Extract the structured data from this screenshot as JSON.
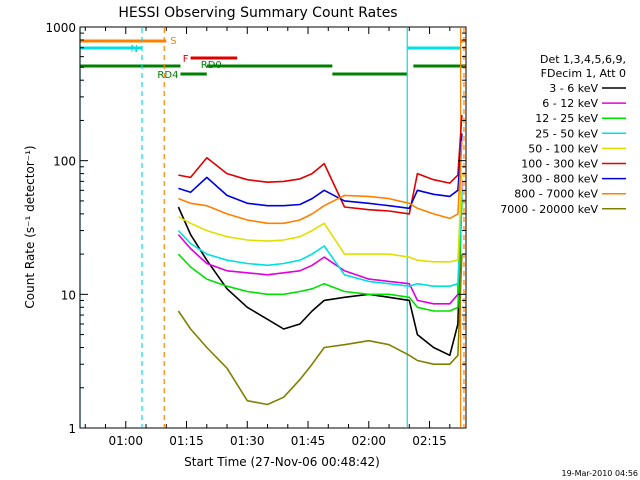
{
  "chart_data": {
    "type": "line",
    "title": "HESSI Observing Summary Count Rates",
    "xlabel": "Start Time (27-Nov-06 00:48:42)",
    "ylabel": "Count Rate (s⁻¹ detector⁻¹)",
    "y_scale": "log",
    "ylim": [
      1,
      1000
    ],
    "xlim": [
      "00:48:42",
      "02:24:00"
    ],
    "x_ticks": [
      "01:00",
      "01:15",
      "01:30",
      "01:45",
      "02:00",
      "02:15"
    ],
    "y_ticks": [
      "1",
      "10",
      "100",
      "1000"
    ],
    "legend_header": [
      "Det 1,3,4,5,6,9,",
      "FDecim 1, Att 0"
    ],
    "legend_position": "right",
    "timestamp": "19-Mar-2010 04:56",
    "series": [
      {
        "name": "3 - 6 keV",
        "color": "#000000",
        "x": [
          "01:13",
          "01:16",
          "01:20",
          "01:25",
          "01:30",
          "01:35",
          "01:39",
          "01:43",
          "01:46",
          "01:49",
          "01:54",
          "02:00",
          "02:05",
          "02:10",
          "02:12",
          "02:16",
          "02:20",
          "02:22",
          "02:23"
        ],
        "values": [
          45,
          28,
          18,
          11,
          8,
          6.5,
          5.5,
          6,
          7.5,
          9,
          9.5,
          10,
          9.5,
          9,
          5,
          4,
          3.5,
          6,
          60
        ]
      },
      {
        "name": "6 - 12 keV",
        "color": "#e000e0",
        "x": [
          "01:13",
          "01:16",
          "01:20",
          "01:25",
          "01:30",
          "01:35",
          "01:39",
          "01:43",
          "01:46",
          "01:49",
          "01:54",
          "02:00",
          "02:05",
          "02:10",
          "02:12",
          "02:16",
          "02:20",
          "02:22",
          "02:23"
        ],
        "values": [
          28,
          22,
          17,
          15,
          14.5,
          14,
          14.5,
          15,
          16.5,
          19,
          15,
          13,
          12.5,
          12,
          9,
          8.5,
          8.5,
          10,
          70
        ]
      },
      {
        "name": "12 - 25 keV",
        "color": "#00e000",
        "x": [
          "01:13",
          "01:16",
          "01:20",
          "01:25",
          "01:30",
          "01:35",
          "01:39",
          "01:43",
          "01:46",
          "01:49",
          "01:54",
          "02:00",
          "02:05",
          "02:10",
          "02:12",
          "02:16",
          "02:20",
          "02:22",
          "02:23"
        ],
        "values": [
          20,
          16,
          13,
          11.5,
          10.5,
          10,
          10,
          10.5,
          11,
          12,
          10.5,
          10,
          10,
          9.5,
          8,
          7.5,
          7.5,
          8,
          50
        ]
      },
      {
        "name": "25 - 50 keV",
        "color": "#00e0e0",
        "x": [
          "01:13",
          "01:16",
          "01:20",
          "01:25",
          "01:30",
          "01:35",
          "01:39",
          "01:43",
          "01:46",
          "01:49",
          "01:54",
          "02:00",
          "02:05",
          "02:10",
          "02:12",
          "02:16",
          "02:20",
          "02:22",
          "02:23"
        ],
        "values": [
          30,
          24,
          20,
          18,
          17,
          16.5,
          17,
          18,
          20,
          23,
          14,
          12.5,
          12,
          11.5,
          12,
          11.5,
          11.5,
          12,
          60
        ]
      },
      {
        "name": "50 - 100 keV",
        "color": "#e0e000",
        "x": [
          "01:13",
          "01:16",
          "01:20",
          "01:25",
          "01:30",
          "01:35",
          "01:39",
          "01:43",
          "01:46",
          "01:49",
          "01:54",
          "02:00",
          "02:05",
          "02:10",
          "02:12",
          "02:16",
          "02:20",
          "02:22",
          "02:23"
        ],
        "values": [
          38,
          34,
          30,
          27,
          25.5,
          25,
          25.5,
          27,
          30,
          34,
          20,
          20,
          20,
          19,
          18,
          17.5,
          17.5,
          18,
          80
        ]
      },
      {
        "name": "100 - 300 keV",
        "color": "#e00000",
        "x": [
          "01:13",
          "01:16",
          "01:20",
          "01:25",
          "01:30",
          "01:35",
          "01:39",
          "01:43",
          "01:46",
          "01:49",
          "01:54",
          "02:00",
          "02:05",
          "02:10",
          "02:12",
          "02:16",
          "02:20",
          "02:22",
          "02:23"
        ],
        "values": [
          78,
          75,
          105,
          80,
          72,
          69,
          70,
          73,
          80,
          95,
          45,
          43,
          42,
          40,
          80,
          72,
          68,
          78,
          220
        ]
      },
      {
        "name": "300 - 800 keV",
        "color": "#0000e0",
        "x": [
          "01:13",
          "01:16",
          "01:20",
          "01:25",
          "01:30",
          "01:35",
          "01:39",
          "01:43",
          "01:46",
          "01:49",
          "01:54",
          "02:00",
          "02:05",
          "02:10",
          "02:12",
          "02:16",
          "02:20",
          "02:22",
          "02:23"
        ],
        "values": [
          62,
          58,
          75,
          55,
          48,
          46,
          46,
          47,
          52,
          60,
          50,
          48,
          46,
          44,
          60,
          56,
          54,
          60,
          160
        ]
      },
      {
        "name": "800 - 7000 keV",
        "color": "#ff8000",
        "x": [
          "01:13",
          "01:16",
          "01:20",
          "01:25",
          "01:30",
          "01:35",
          "01:39",
          "01:43",
          "01:46",
          "01:49",
          "01:54",
          "02:00",
          "02:05",
          "02:10",
          "02:12",
          "02:16",
          "02:20",
          "02:22",
          "02:23"
        ],
        "values": [
          52,
          48,
          46,
          40,
          36,
          34,
          34,
          36,
          40,
          46,
          55,
          54,
          52,
          48,
          44,
          40,
          37,
          40,
          140
        ]
      },
      {
        "name": "7000 - 20000 keV",
        "color": "#808000",
        "x": [
          "01:13",
          "01:16",
          "01:20",
          "01:25",
          "01:30",
          "01:35",
          "01:39",
          "01:43",
          "01:46",
          "01:49",
          "01:54",
          "02:00",
          "02:05",
          "02:10",
          "02:12",
          "02:16",
          "02:20",
          "02:22",
          "02:23"
        ],
        "values": [
          7.5,
          5.5,
          4,
          2.8,
          1.6,
          1.5,
          1.7,
          2.3,
          3,
          4,
          4.2,
          4.5,
          4.2,
          3.5,
          3.2,
          3,
          3,
          3.5,
          20
        ]
      }
    ],
    "vlines": [
      {
        "x": "00:48:42",
        "color": "#00e0e0",
        "style": "solid"
      },
      {
        "x": "01:04:00",
        "color": "#00e0e0",
        "style": "dashed"
      },
      {
        "x": "01:09:30",
        "color": "#ff8000",
        "style": "dashed"
      },
      {
        "x": "02:09:30",
        "color": "#00e0e0",
        "style": "solid"
      },
      {
        "x": "02:22:40",
        "color": "#ff8000",
        "style": "solid"
      },
      {
        "x": "02:23:30",
        "color": "#ff8000",
        "style": "dashed"
      }
    ],
    "flag_bars": [
      {
        "label": "S",
        "color": "#ff8000",
        "segments": [
          [
            "00:48:42",
            "01:10:00"
          ],
          [
            "02:22:40",
            "02:24:00"
          ]
        ],
        "level": 1
      },
      {
        "label": "N",
        "color": "#00e0e0",
        "segments": [
          [
            "00:48:42",
            "01:04:00"
          ],
          [
            "02:09:30",
            "02:22:30"
          ]
        ],
        "level": 2
      },
      {
        "label": "F",
        "color": "#e00000",
        "segments": [
          [
            "01:16:00",
            "01:27:30"
          ]
        ],
        "level": 3
      },
      {
        "label": "RD0",
        "color": "#008000",
        "segments": [
          [
            "00:48:42",
            "01:13:30"
          ],
          [
            "01:20:00",
            "01:51:00"
          ],
          [
            "02:11:00",
            "02:24:00"
          ]
        ],
        "level": 4
      },
      {
        "label": "RD4",
        "color": "#008000",
        "segments": [
          [
            "01:13:30",
            "01:20:00"
          ],
          [
            "01:51:00",
            "02:09:30"
          ]
        ],
        "level": 5
      }
    ]
  }
}
